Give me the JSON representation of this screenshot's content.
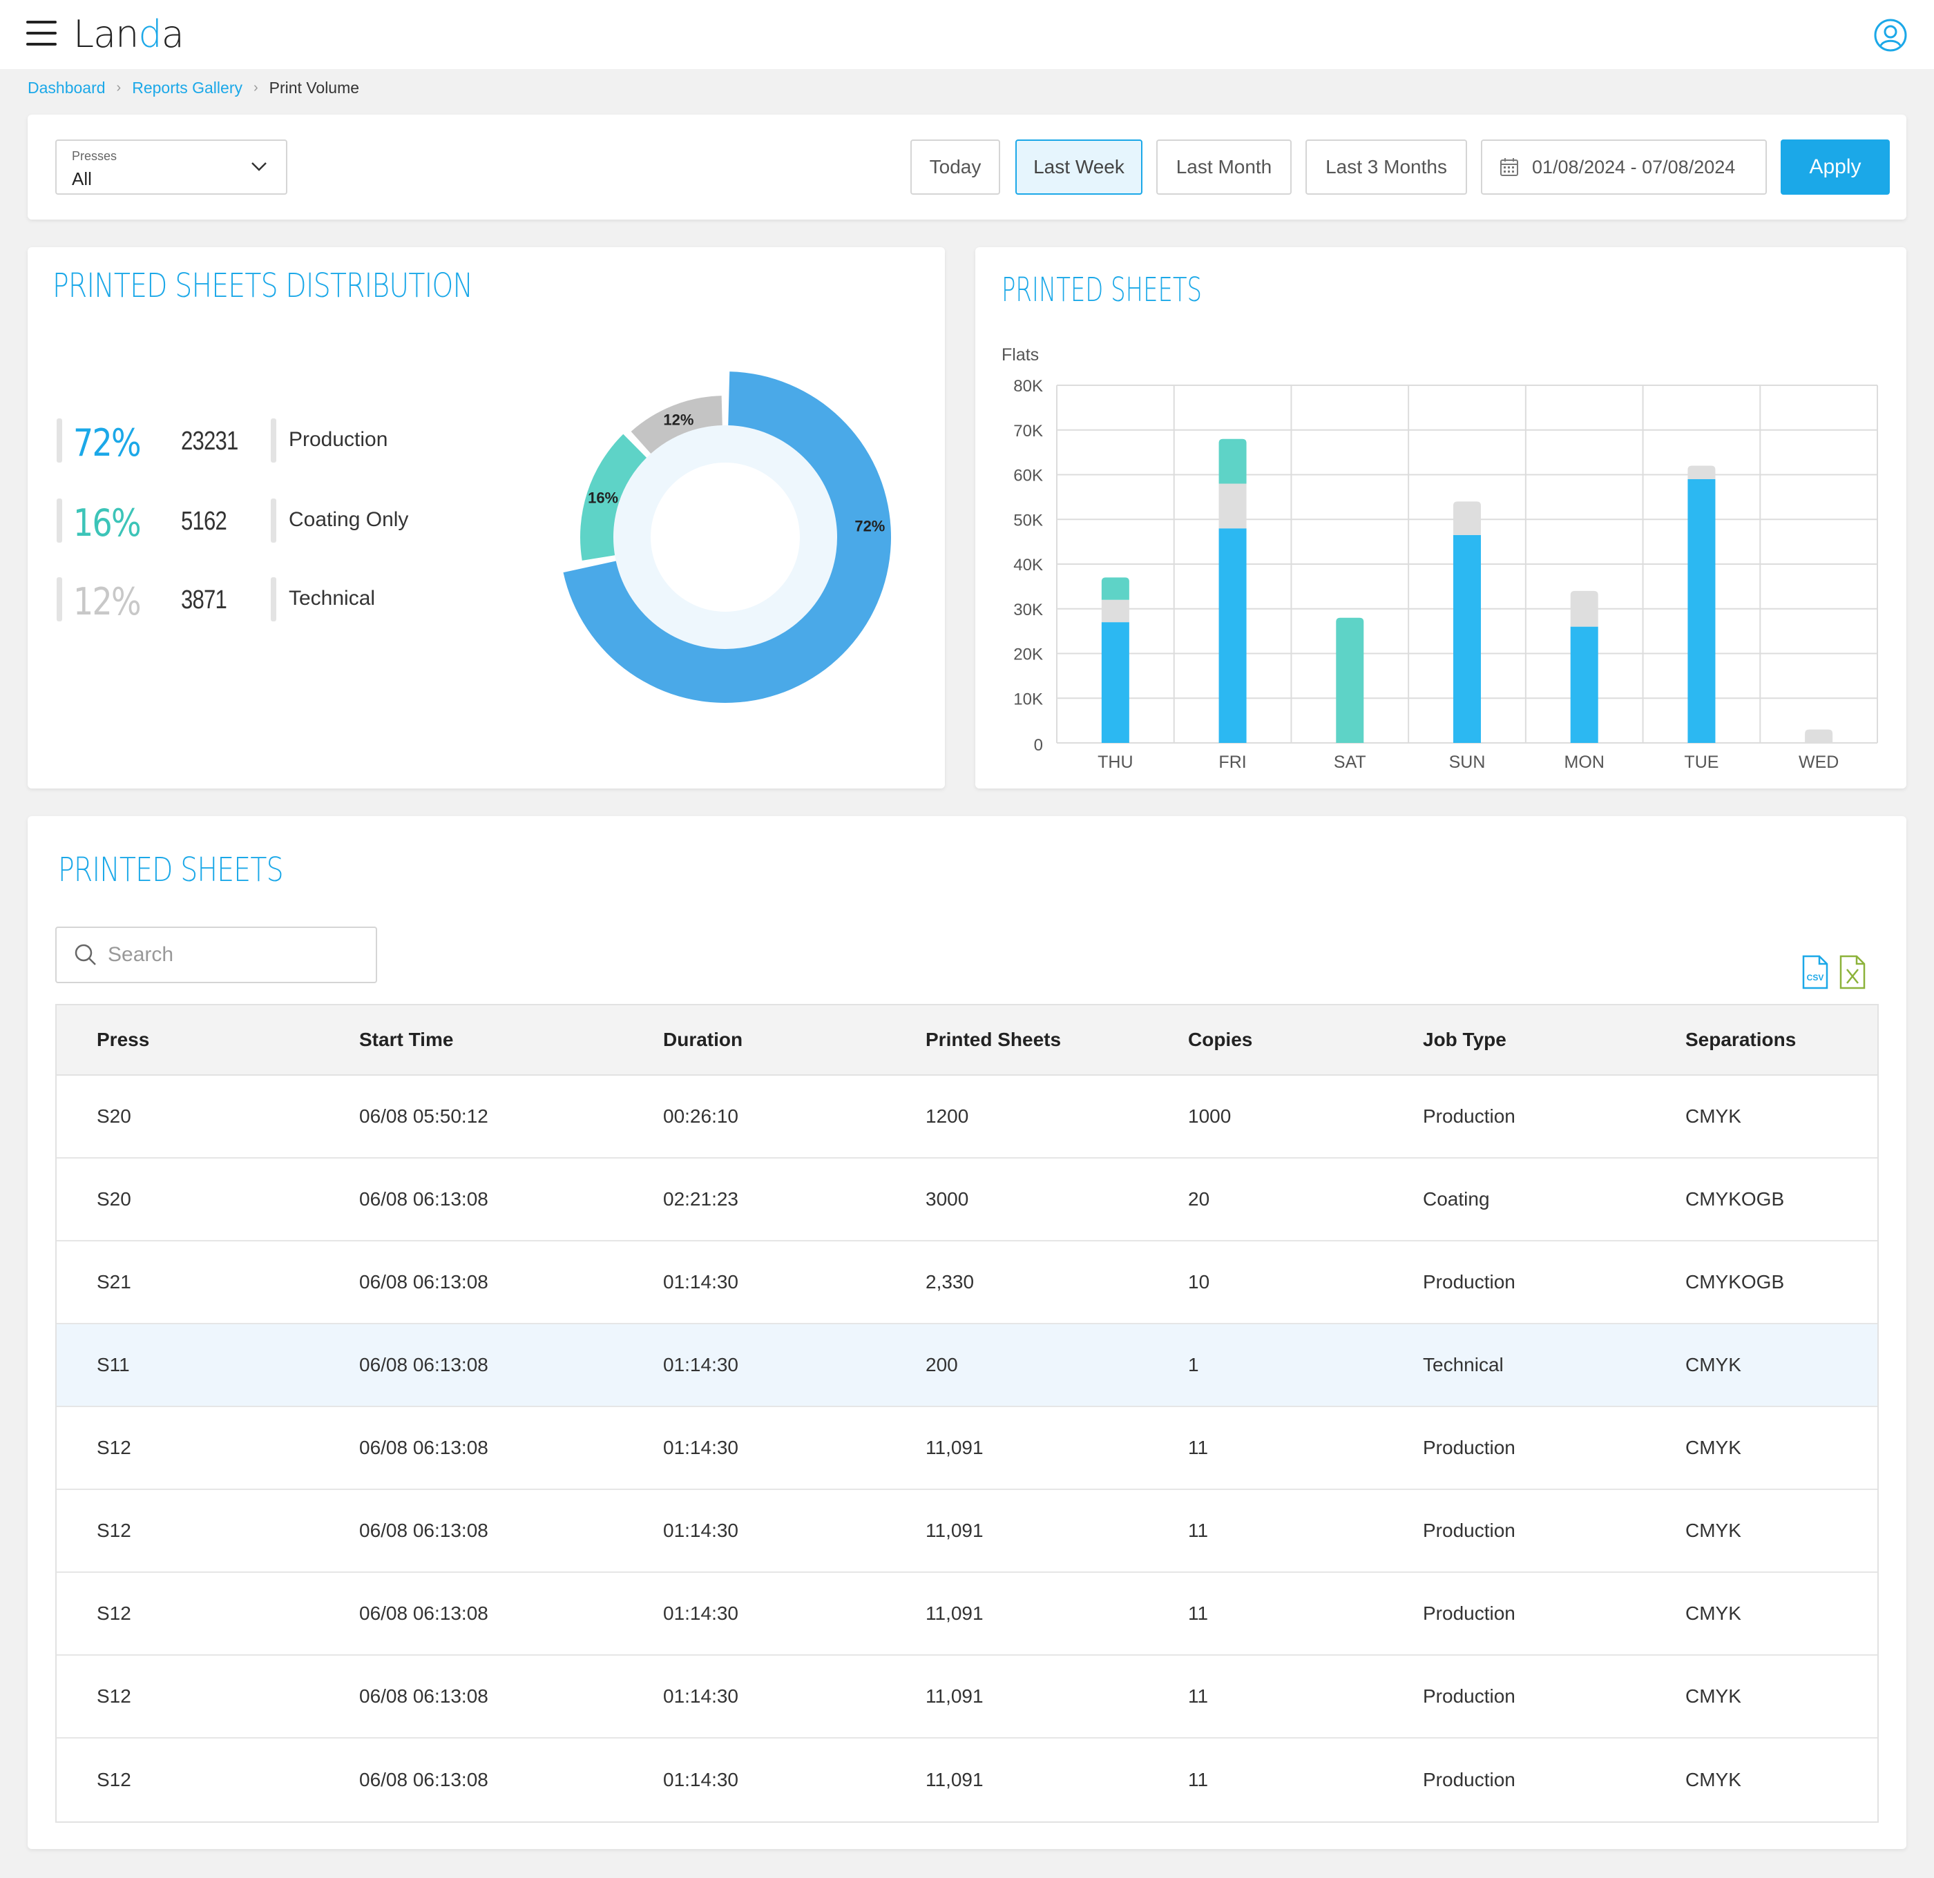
{
  "header": {
    "logo_prefix": "Lan",
    "logo_dot": "d",
    "logo_suffix": "a"
  },
  "breadcrumb": {
    "items": [
      "Dashboard",
      "Reports Gallery"
    ],
    "current": "Print Volume"
  },
  "filters": {
    "presses_label": "Presses",
    "presses_value": "All",
    "ranges": [
      "Today",
      "Last Week",
      "Last Month",
      "Last 3 Months"
    ],
    "active_range": "Last Week",
    "date_range": "01/08/2024 - 07/08/2024",
    "apply_label": "Apply"
  },
  "distribution": {
    "title": "PRINTED SHEETS DISTRIBUTION",
    "items": [
      {
        "pct": "72%",
        "count": "23231",
        "name": "Production",
        "color": "#1ba8e8",
        "slice_color": "#4aa9e8",
        "value": 72
      },
      {
        "pct": "16%",
        "count": "5162",
        "name": "Coating Only",
        "color": "#3cc4b8",
        "slice_color": "#5ed3c7",
        "value": 16
      },
      {
        "pct": "12%",
        "count": "3871",
        "name": "Technical",
        "color": "#c8c8c8",
        "slice_color": "#c4c4c4",
        "value": 12
      }
    ]
  },
  "chart_data": {
    "type": "bar",
    "title": "PRINTED SHEETS",
    "ylabel": "Flats",
    "ylim": [
      0,
      80000
    ],
    "y_ticks": [
      "0",
      "10K",
      "20K",
      "30K",
      "40K",
      "50K",
      "60K",
      "70K",
      "80K"
    ],
    "categories": [
      "THU",
      "FRI",
      "SAT",
      "SUN",
      "MON",
      "TUE",
      "WED"
    ],
    "stacked": true,
    "series": [
      {
        "color": "#2cb8f2",
        "values": [
          27000,
          48000,
          0,
          46500,
          26000,
          59000,
          0
        ]
      },
      {
        "color": "#dedede",
        "values": [
          5000,
          10000,
          0,
          7500,
          8000,
          3000,
          3000
        ]
      },
      {
        "color": "#5ed3c7",
        "values": [
          5000,
          10000,
          28000,
          0,
          0,
          0,
          0
        ]
      }
    ],
    "grid": true
  },
  "table": {
    "title": "PRINTED SHEETS",
    "search_placeholder": "Search",
    "columns": [
      "Press",
      "Start Time",
      "Duration",
      "Printed Sheets",
      "Copies",
      "Job Type",
      "Separations"
    ],
    "rows": [
      [
        "S20",
        "06/08 05:50:12",
        "00:26:10",
        "1200",
        "1000",
        "Production",
        "CMYK"
      ],
      [
        "S20",
        "06/08 06:13:08",
        "02:21:23",
        "3000",
        "20",
        "Coating",
        "CMYKOGB"
      ],
      [
        "S21",
        "06/08 06:13:08",
        "01:14:30",
        "2,330",
        "10",
        "Production",
        "CMYKOGB"
      ],
      [
        "S11",
        "06/08 06:13:08",
        "01:14:30",
        "200",
        "1",
        "Technical",
        "CMYK"
      ],
      [
        "S12",
        "06/08 06:13:08",
        "01:14:30",
        "11,091",
        "11",
        "Production",
        "CMYK"
      ],
      [
        "S12",
        "06/08 06:13:08",
        "01:14:30",
        "11,091",
        "11",
        "Production",
        "CMYK"
      ],
      [
        "S12",
        "06/08 06:13:08",
        "01:14:30",
        "11,091",
        "11",
        "Production",
        "CMYK"
      ],
      [
        "S12",
        "06/08 06:13:08",
        "01:14:30",
        "11,091",
        "11",
        "Production",
        "CMYK"
      ],
      [
        "S12",
        "06/08 06:13:08",
        "01:14:30",
        "11,091",
        "11",
        "Production",
        "CMYK"
      ]
    ],
    "highlighted_row": 3
  }
}
